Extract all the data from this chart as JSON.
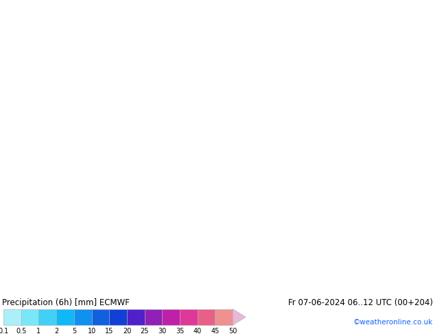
{
  "title_left": "Precipitation (6h) [mm] ECMWF",
  "title_right": "Fr 07-06-2024 06..12 UTC (00+204)",
  "credit": "©weatheronline.co.uk",
  "colorbar_levels": [
    0.1,
    0.5,
    1,
    2,
    5,
    10,
    15,
    20,
    25,
    30,
    35,
    40,
    45,
    50
  ],
  "colorbar_colors": [
    "#aaf0f8",
    "#78e8f8",
    "#40d0f8",
    "#10b8f8",
    "#1090f0",
    "#1060e0",
    "#1040d8",
    "#5020c8",
    "#9020b8",
    "#c020a8",
    "#e03898",
    "#e86088",
    "#f09090",
    "#e8b8d8"
  ],
  "land_color": "#c8f0a8",
  "sea_color": "#d0d0d0",
  "border_color": "#909090",
  "coast_color": "#909090",
  "map_bg_color": "#c8f0a8",
  "bottom_bg": "#ffffff",
  "text_color": "#000000",
  "credit_color": "#1060ff",
  "fontsize_title": 8.5,
  "fontsize_credit": 7.5,
  "fontsize_ticks": 7,
  "extent": [
    18.0,
    60.0,
    22.0,
    48.0
  ],
  "figsize": [
    6.34,
    4.9
  ],
  "dpi": 100
}
